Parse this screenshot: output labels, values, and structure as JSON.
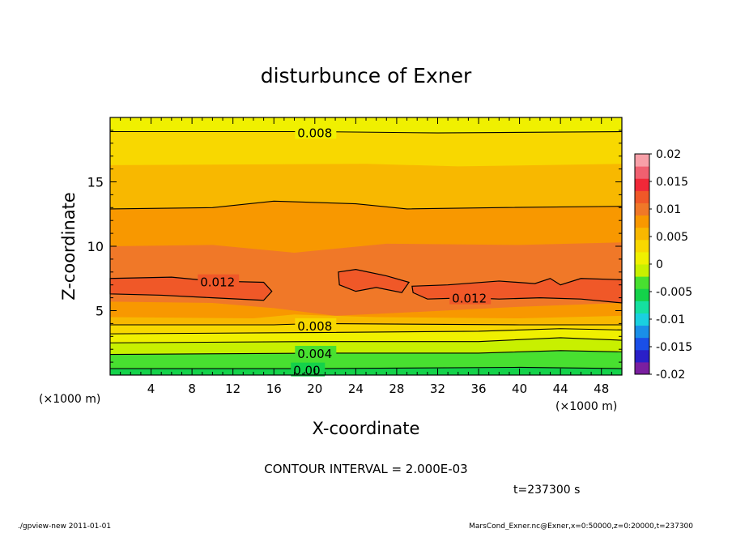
{
  "chart_data": {
    "type": "contour",
    "title": "disturbunce of Exner",
    "xlabel": "X-coordinate",
    "ylabel": "Z-coordinate",
    "x_unit": "(×1000 m)",
    "y_unit": "(×1000 m)",
    "x_ticks": [
      "4",
      "8",
      "12",
      "16",
      "20",
      "24",
      "28",
      "32",
      "36",
      "40",
      "44",
      "48"
    ],
    "y_ticks": [
      "5",
      "10",
      "15"
    ],
    "xlim": [
      0,
      50
    ],
    "ylim": [
      0,
      20
    ],
    "contour_interval": "CONTOUR INTERVAL = 2.000E-03",
    "time_label": "t=237300 s",
    "contour_labels": [
      "0.008",
      "0.012",
      "0.012",
      "0.008",
      "0.004",
      "0.00"
    ],
    "colorbar": {
      "labels": [
        "0.02",
        "0.015",
        "0.01",
        "0.005",
        "0",
        "-0.005",
        "-0.01",
        "-0.015",
        "-0.02"
      ],
      "range": [
        -0.02,
        0.02
      ],
      "colors": [
        "#7a1fa0",
        "#2a1fc8",
        "#1a4fe8",
        "#1a8fe8",
        "#1ad0e0",
        "#15e0a0",
        "#14d24a",
        "#48e030",
        "#c8f000",
        "#f0f000",
        "#f8d800",
        "#f8b800",
        "#f89800",
        "#f07828",
        "#f05828",
        "#f02838",
        "#f06070",
        "#f8a0a8"
      ]
    }
  },
  "footer": {
    "left": "./gpview-new  2011-01-01",
    "right": "MarsCond_Exner.nc@Exner,x=0:50000,z=0:20000,t=237300"
  }
}
